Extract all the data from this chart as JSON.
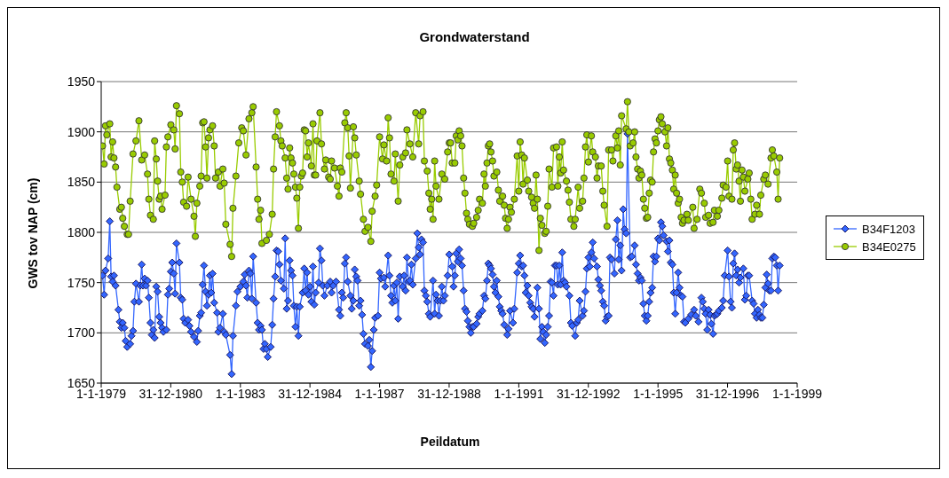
{
  "chart_data": {
    "type": "line",
    "title": "Grondwaterstand",
    "xlabel": "Peildatum",
    "ylabel": "GWS tov NAP (cm)",
    "ylim": [
      1650,
      1950
    ],
    "yticks": [
      1650,
      1700,
      1750,
      1800,
      1850,
      1900,
      1950
    ],
    "xlim": [
      "1979-01-01",
      "1999-01-01"
    ],
    "xticks": [
      {
        "value": "1979-01-01",
        "label": "1-1-1979"
      },
      {
        "value": "1980-12-31",
        "label": "31-12-1980"
      },
      {
        "value": "1983-01-01",
        "label": "1-1-1983"
      },
      {
        "value": "1984-12-31",
        "label": "31-12-1984"
      },
      {
        "value": "1987-01-01",
        "label": "1-1-1987"
      },
      {
        "value": "1988-12-31",
        "label": "31-12-1988"
      },
      {
        "value": "1991-01-01",
        "label": "1-1-1991"
      },
      {
        "value": "1992-12-31",
        "label": "31-12-1992"
      },
      {
        "value": "1995-01-01",
        "label": "1-1-1995"
      },
      {
        "value": "1996-12-31",
        "label": "31-12-1996"
      },
      {
        "value": "1999-01-01",
        "label": "1-1-1999"
      }
    ],
    "grid": "y",
    "legend": "right",
    "series": [
      {
        "name": "B34F1203",
        "color": "#3366ff",
        "marker": "diamond",
        "x": [
          "1979-01-15",
          "1979-02-01",
          "1979-02-15",
          "1979-03-15",
          "1979-04-01",
          "1979-04-15",
          "1979-05-01",
          "1979-05-15",
          "1979-06-01",
          "1979-07-01",
          "1979-07-15",
          "1979-08-01",
          "1979-08-15",
          "1979-09-01",
          "1979-09-15",
          "1979-10-01",
          "1979-11-01",
          "1979-11-15",
          "1979-12-01",
          "1979-12-15",
          "1980-01-01",
          "1980-02-01",
          "1980-02-15",
          "1980-03-01",
          "1980-03-15",
          "1980-04-01",
          "1980-04-15",
          "1980-05-01",
          "1980-05-15",
          "1980-06-01",
          "1980-06-15",
          "1980-07-01",
          "1980-07-15",
          "1980-08-01",
          "1980-08-15",
          "1980-09-01",
          "1980-09-15",
          "1980-10-01",
          "1980-10-15",
          "1980-11-15",
          "1980-12-01",
          "1980-12-15",
          "1981-01-01",
          "1981-01-15",
          "1981-02-01",
          "1981-02-15",
          "1981-03-01",
          "1981-04-01",
          "1981-04-15",
          "1981-05-01",
          "1981-05-15",
          "1981-06-01",
          "1981-07-01",
          "1981-07-15",
          "1981-08-01",
          "1981-09-01",
          "1981-10-01",
          "1981-10-15",
          "1981-11-01",
          "1981-11-15",
          "1981-12-01",
          "1981-12-15",
          "1982-01-01",
          "1982-01-15",
          "1982-02-01",
          "1982-02-15",
          "1982-03-01",
          "1982-03-15",
          "1982-04-01",
          "1982-05-01",
          "1982-05-15",
          "1982-06-01",
          "1982-07-01",
          "1982-07-15",
          "1982-08-01",
          "1982-09-15",
          "1982-10-01",
          "1982-10-15",
          "1982-11-15",
          "1982-12-01",
          "1983-01-01",
          "1983-02-01",
          "1983-02-15",
          "1983-03-01",
          "1983-03-15",
          "1983-04-01",
          "1983-04-15",
          "1983-05-01",
          "1983-05-15",
          "1983-06-15",
          "1983-07-01",
          "1983-07-15",
          "1983-08-01",
          "1983-08-15",
          "1983-09-01",
          "1983-09-15",
          "1983-10-01",
          "1983-10-15",
          "1983-11-15",
          "1983-12-01",
          "1983-12-15",
          "1984-01-01",
          "1984-01-15",
          "1984-02-01",
          "1984-02-15",
          "1984-03-01",
          "1984-04-01",
          "1984-04-15",
          "1984-05-01",
          "1984-05-15",
          "1984-06-01",
          "1984-06-15",
          "1984-07-01",
          "1984-07-15",
          "1984-08-01",
          "1984-08-15",
          "1984-09-01",
          "1984-09-15",
          "1984-10-15",
          "1984-11-01",
          "1984-11-15",
          "1984-12-01",
          "1984-12-15",
          "1985-01-01",
          "1985-01-15",
          "1985-02-01",
          "1985-02-15",
          "1985-03-01",
          "1985-04-01",
          "1985-04-15",
          "1985-05-01",
          "1985-05-15",
          "1985-06-01",
          "1985-07-01",
          "1985-08-01",
          "1985-08-15",
          "1985-09-01",
          "1985-10-01",
          "1985-11-01",
          "1985-11-15",
          "1985-12-01",
          "1985-12-15",
          "1986-01-01",
          "1986-01-15",
          "1986-02-01",
          "1986-03-01",
          "1986-03-15",
          "1986-04-01",
          "1986-04-15",
          "1986-05-01",
          "1986-05-15",
          "1986-06-01",
          "1986-06-15",
          "1986-07-01",
          "1986-07-15",
          "1986-08-01",
          "1986-09-01",
          "1986-09-15",
          "1986-10-01",
          "1986-10-15",
          "1986-11-01",
          "1986-11-15",
          "1986-12-15",
          "1987-01-01",
          "1987-01-15",
          "1987-02-15",
          "1987-03-01",
          "1987-04-01",
          "1987-04-15",
          "1987-05-01",
          "1987-05-15",
          "1987-06-01",
          "1987-06-15",
          "1987-07-01",
          "1987-07-15",
          "1987-08-01",
          "1987-09-01",
          "1987-09-15",
          "1987-10-01",
          "1987-10-15",
          "1987-11-01",
          "1987-11-15",
          "1987-12-01",
          "1987-12-15",
          "1988-01-15",
          "1988-02-01",
          "1988-02-15",
          "1988-03-01",
          "1988-03-15",
          "1988-04-01",
          "1988-04-15",
          "1988-05-01",
          "1988-05-15",
          "1988-06-01",
          "1988-06-15",
          "1988-07-15",
          "1988-08-01",
          "1988-08-15",
          "1988-09-01",
          "1988-09-15",
          "1988-10-01",
          "1988-10-15",
          "1988-11-01",
          "1988-11-15",
          "1988-12-15",
          "1989-01-01",
          "1989-02-01",
          "1989-02-15",
          "1989-03-01",
          "1989-03-15",
          "1989-04-01",
          "1989-04-15",
          "1989-05-01",
          "1989-05-15",
          "1989-06-01",
          "1989-06-15",
          "1989-07-01",
          "1989-07-15",
          "1989-08-01",
          "1989-08-15",
          "1989-09-01",
          "1989-09-15",
          "1989-10-15",
          "1989-11-01",
          "1989-11-15",
          "1989-12-15",
          "1990-01-01",
          "1990-01-15",
          "1990-02-01",
          "1990-02-15",
          "1990-03-01",
          "1990-03-15",
          "1990-04-01",
          "1990-04-15",
          "1990-05-01",
          "1990-05-15",
          "1990-06-01",
          "1990-06-15",
          "1990-07-01",
          "1990-07-15",
          "1990-08-01",
          "1990-09-01",
          "1990-09-15",
          "1990-10-01",
          "1990-11-01",
          "1990-11-15",
          "1990-12-15",
          "1991-01-01",
          "1991-01-15",
          "1991-02-01",
          "1991-02-15",
          "1991-03-01",
          "1991-03-15",
          "1991-04-01",
          "1991-04-15",
          "1991-05-01",
          "1991-05-15",
          "1991-06-01",
          "1991-06-15",
          "1991-07-15",
          "1991-08-01",
          "1991-08-15",
          "1991-09-01",
          "1991-09-15",
          "1991-10-01",
          "1991-10-15",
          "1991-11-01",
          "1991-11-15",
          "1991-12-01",
          "1991-12-15",
          "1992-01-01",
          "1992-01-15",
          "1992-02-01",
          "1992-02-15",
          "1992-03-01",
          "1992-03-15",
          "1992-04-01",
          "1992-04-15",
          "1992-05-01",
          "1992-05-15",
          "1992-06-15",
          "1992-07-01",
          "1992-07-15",
          "1992-08-15",
          "1992-09-01",
          "1992-09-15",
          "1992-10-01",
          "1992-11-01",
          "1992-11-15",
          "1992-12-01",
          "1992-12-15",
          "1993-01-01",
          "1993-01-15",
          "1993-02-01",
          "1993-02-15",
          "1993-03-01",
          "1993-04-01",
          "1993-04-15",
          "1993-05-01",
          "1993-05-15",
          "1993-06-01",
          "1993-06-15",
          "1993-07-01",
          "1993-07-15",
          "1993-08-01",
          "1993-08-15",
          "1993-09-01",
          "1993-10-01",
          "1993-10-15",
          "1993-11-01",
          "1993-11-15",
          "1993-12-01",
          "1993-12-15",
          "1994-01-01",
          "1994-01-15",
          "1994-02-01",
          "1994-02-15",
          "1994-03-15",
          "1994-04-01",
          "1994-05-01",
          "1994-05-15",
          "1994-06-01",
          "1994-06-15",
          "1994-07-01",
          "1994-07-15",
          "1994-08-01",
          "1994-08-15",
          "1994-09-01",
          "1994-09-15",
          "1994-10-01",
          "1994-10-15",
          "1994-11-01",
          "1994-11-15",
          "1994-12-01",
          "1994-12-15",
          "1995-01-01",
          "1995-01-15",
          "1995-02-01",
          "1995-02-15",
          "1995-03-01",
          "1995-04-01",
          "1995-04-15",
          "1995-05-01",
          "1995-05-15",
          "1995-06-01",
          "1995-06-15",
          "1995-07-01",
          "1995-07-15",
          "1995-08-01",
          "1995-08-15",
          "1995-09-01",
          "1995-09-15",
          "1995-10-01",
          "1995-10-15",
          "1995-11-15",
          "1995-12-15",
          "1996-01-15",
          "1996-02-01",
          "1996-03-01",
          "1996-04-01",
          "1996-04-15",
          "1996-05-01",
          "1996-05-15",
          "1996-06-01",
          "1996-06-15",
          "1996-07-01",
          "1996-07-15",
          "1996-08-01",
          "1996-08-15",
          "1996-09-01",
          "1996-09-15",
          "1996-10-01",
          "1996-11-01",
          "1996-11-15",
          "1996-12-01",
          "1997-01-01",
          "1997-01-15",
          "1997-02-01",
          "1997-02-15",
          "1997-03-01",
          "1997-03-15",
          "1997-04-01",
          "1997-04-15",
          "1997-05-01",
          "1997-05-15",
          "1997-06-15",
          "1997-07-01",
          "1997-07-15",
          "1997-08-01",
          "1997-08-15",
          "1997-09-15",
          "1997-10-01",
          "1997-10-15",
          "1997-11-01",
          "1997-11-15",
          "1997-12-01",
          "1997-12-15",
          "1998-01-01",
          "1998-01-15",
          "1998-02-01",
          "1998-02-15",
          "1998-03-01",
          "1998-03-15",
          "1998-04-01",
          "1998-04-15",
          "1998-05-01",
          "1998-05-15",
          "1998-06-01",
          "1998-06-15",
          "1998-07-01"
        ],
        "values": [
          1757,
          1738,
          1762,
          1774,
          1811,
          1756,
          1751,
          1757,
          1747,
          1723,
          1711,
          1705,
          1710,
          1705,
          1692,
          1686,
          1689,
          1697,
          1702,
          1731,
          1749,
          1731,
          1747,
          1768,
          1747,
          1754,
          1747,
          1752,
          1735,
          1710,
          1698,
          1703,
          1695,
          1746,
          1741,
          1716,
          1710,
          1705,
          1701,
          1703,
          1738,
          1744,
          1761,
          1770,
          1759,
          1739,
          1789,
          1770,
          1735,
          1733,
          1714,
          1710,
          1713,
          1707,
          1701,
          1696,
          1691,
          1702,
          1717,
          1720,
          1748,
          1767,
          1741,
          1727,
          1738,
          1757,
          1740,
          1759,
          1730,
          1720,
          1701,
          1705,
          1719,
          1701,
          1698,
          1678,
          1659,
          1697,
          1727,
          1741,
          1746,
          1751,
          1758,
          1747,
          1735,
          1762,
          1759,
          1734,
          1776,
          1730,
          1710,
          1703,
          1707,
          1703,
          1684,
          1689,
          1684,
          1676,
          1686,
          1708,
          1734,
          1756,
          1782,
          1781,
          1768,
          1752,
          1744,
          1794,
          1724,
          1732,
          1772,
          1762,
          1757,
          1727,
          1706,
          1726,
          1697,
          1726,
          1740,
          1764,
          1742,
          1760,
          1738,
          1746,
          1731,
          1766,
          1728,
          1740,
          1750,
          1784,
          1772,
          1747,
          1737,
          1747,
          1751,
          1740,
          1747,
          1751,
          1723,
          1717,
          1740,
          1735,
          1769,
          1775,
          1751,
          1737,
          1724,
          1732,
          1763,
          1756,
          1752,
          1727,
          1732,
          1718,
          1699,
          1689,
          1687,
          1693,
          1666,
          1682,
          1703,
          1715,
          1717,
          1760,
          1754,
          1755,
          1746,
          1777,
          1757,
          1737,
          1730,
          1747,
          1732,
          1750,
          1714,
          1756,
          1746,
          1757,
          1742,
          1775,
          1751,
          1752,
          1768,
          1748,
          1774,
          1799,
          1785,
          1778,
          1793,
          1790,
          1742,
          1737,
          1731,
          1719,
          1716,
          1752,
          1719,
          1738,
          1732,
          1717,
          1732,
          1746,
          1732,
          1737,
          1757,
          1778,
          1766,
          1746,
          1757,
          1779,
          1771,
          1783,
          1774,
          1767,
          1742,
          1724,
          1721,
          1712,
          1706,
          1700,
          1706,
          1706,
          1709,
          1716,
          1719,
          1722,
          1737,
          1734,
          1752,
          1769,
          1767,
          1764,
          1758,
          1746,
          1740,
          1752,
          1736,
          1726,
          1722,
          1719,
          1708,
          1698,
          1704,
          1722,
          1710,
          1724,
          1760,
          1769,
          1777,
          1766,
          1767,
          1757,
          1740,
          1747,
          1737,
          1730,
          1726,
          1724,
          1716,
          1745,
          1724,
          1694,
          1706,
          1701,
          1690,
          1698,
          1706,
          1717,
          1751,
          1750,
          1737,
          1767,
          1767,
          1748,
          1767,
          1748,
          1780,
          1752,
          1750,
          1746,
          1737,
          1710,
          1707,
          1697,
          1710,
          1713,
          1732,
          1717,
          1722,
          1741,
          1764,
          1775,
          1766,
          1780,
          1790,
          1774,
          1766,
          1753,
          1747,
          1742,
          1731,
          1727,
          1712,
          1716,
          1717,
          1775,
          1773,
          1759,
          1793,
          1812,
          1773,
          1787,
          1762,
          1823,
          1803,
          1799,
          1898,
          1775,
          1776,
          1787,
          1768,
          1759,
          1752,
          1755,
          1752,
          1729,
          1717,
          1712,
          1717,
          1731,
          1740,
          1745,
          1776,
          1771,
          1776,
          1794,
          1792,
          1810,
          1806,
          1797,
          1791,
          1781,
          1792,
          1770,
          1768,
          1740,
          1719,
          1740,
          1760,
          1745,
          1737,
          1736,
          1711,
          1710,
          1714,
          1718,
          1723,
          1717,
          1711,
          1735,
          1731,
          1724,
          1719,
          1703,
          1723,
          1718,
          1709,
          1699,
          1717,
          1718,
          1719,
          1722,
          1725,
          1732,
          1757,
          1782,
          1756,
          1731,
          1725,
          1769,
          1779,
          1757,
          1763,
          1750,
          1755,
          1764,
          1733,
          1737,
          1757,
          1757,
          1732,
          1729,
          1719,
          1715,
          1723,
          1718,
          1715,
          1715,
          1728,
          1745,
          1758,
          1749,
          1742,
          1742,
          1774,
          1776,
          1775,
          1767,
          1742,
          1767
        ]
      },
      {
        "name": "B34E0275",
        "color": "#99cc00",
        "marker": "circle",
        "x": [
          "1979-01-15",
          "1979-02-01",
          "1979-02-15",
          "1979-03-01",
          "1979-04-01",
          "1979-04-15",
          "1979-05-01",
          "1979-05-15",
          "1979-06-01",
          "1979-06-15",
          "1979-07-15",
          "1979-08-01",
          "1979-08-15",
          "1979-09-01",
          "1979-10-01",
          "1979-10-15",
          "1979-11-01",
          "1979-12-01",
          "1980-01-01",
          "1980-02-01",
          "1980-03-01",
          "1980-04-01",
          "1980-05-01",
          "1980-05-15",
          "1980-06-01",
          "1980-07-01",
          "1980-07-15",
          "1980-08-01",
          "1980-08-15",
          "1980-09-01",
          "1980-09-15",
          "1980-10-01",
          "1980-11-01",
          "1980-11-15",
          "1980-12-01",
          "1981-01-01",
          "1981-02-01",
          "1981-02-15",
          "1981-03-01",
          "1981-04-01",
          "1981-04-15",
          "1981-05-01",
          "1981-05-15",
          "1981-06-15",
          "1981-07-01",
          "1981-08-01",
          "1981-09-01",
          "1981-09-15",
          "1981-10-01",
          "1981-11-01",
          "1981-11-15",
          "1981-12-01",
          "1981-12-15",
          "1982-01-01",
          "1982-01-15",
          "1982-02-01",
          "1982-02-15",
          "1982-03-15",
          "1982-04-01",
          "1982-04-15",
          "1982-05-15",
          "1982-06-01",
          "1982-07-01",
          "1982-07-15",
          "1982-08-01",
          "1982-09-15",
          "1982-10-01",
          "1982-10-15",
          "1982-11-15",
          "1982-12-15",
          "1983-01-15",
          "1983-02-01",
          "1983-03-01",
          "1983-04-01",
          "1983-05-01",
          "1983-05-15",
          "1983-06-15",
          "1983-07-01",
          "1983-07-15",
          "1983-08-01",
          "1983-08-15",
          "1983-10-01",
          "1983-11-01",
          "1983-12-01",
          "1983-12-15",
          "1984-01-01",
          "1984-01-15",
          "1984-02-15",
          "1984-03-01",
          "1984-03-15",
          "1984-04-15",
          "1984-05-01",
          "1984-05-15",
          "1984-06-01",
          "1984-06-15",
          "1984-07-01",
          "1984-07-15",
          "1984-08-01",
          "1984-08-15",
          "1984-09-01",
          "1984-09-15",
          "1984-10-01",
          "1984-10-15",
          "1984-11-01",
          "1984-11-15",
          "1984-12-01",
          "1984-12-15",
          "1985-01-15",
          "1985-02-01",
          "1985-02-15",
          "1985-03-01",
          "1985-03-15",
          "1985-04-15",
          "1985-05-01",
          "1985-06-01",
          "1985-06-15",
          "1985-07-15",
          "1985-08-01",
          "1985-08-15",
          "1985-09-15",
          "1985-10-15",
          "1985-11-01",
          "1985-11-15",
          "1985-12-01",
          "1986-01-01",
          "1986-01-15",
          "1986-02-01",
          "1986-02-15",
          "1986-03-01",
          "1986-04-01",
          "1986-04-15",
          "1986-05-01",
          "1986-06-01",
          "1986-06-15",
          "1986-07-15",
          "1986-08-01",
          "1986-09-01",
          "1986-10-01",
          "1986-10-15",
          "1986-11-15",
          "1986-12-01",
          "1987-01-01",
          "1987-02-01",
          "1987-02-15",
          "1987-03-15",
          "1987-04-01",
          "1987-04-15",
          "1987-05-01",
          "1987-06-01",
          "1987-06-15",
          "1987-07-15",
          "1987-08-01",
          "1987-09-01",
          "1987-10-01",
          "1987-10-15",
          "1987-11-15",
          "1987-12-15",
          "1988-01-15",
          "1988-02-15",
          "1988-03-01",
          "1988-04-01",
          "1988-04-15",
          "1988-05-15",
          "1988-06-01",
          "1988-06-15",
          "1988-07-01",
          "1988-07-15",
          "1988-08-01",
          "1988-08-15",
          "1988-09-15",
          "1988-10-15",
          "1988-11-15",
          "1988-12-15",
          "1989-01-01",
          "1989-01-15",
          "1989-02-01",
          "1989-03-01",
          "1989-03-15",
          "1989-04-01",
          "1989-04-15",
          "1989-05-01",
          "1989-05-15",
          "1989-06-01",
          "1989-06-15",
          "1989-07-01",
          "1989-07-15",
          "1989-08-01",
          "1989-09-01",
          "1989-09-15",
          "1989-10-15",
          "1989-11-01",
          "1989-11-15",
          "1989-12-15",
          "1990-01-01",
          "1990-01-15",
          "1990-02-01",
          "1990-02-15",
          "1990-03-01",
          "1990-03-15",
          "1990-04-01",
          "1990-04-15",
          "1990-05-15",
          "1990-06-01",
          "1990-06-15",
          "1990-07-15",
          "1990-08-01",
          "1990-08-15",
          "1990-09-01",
          "1990-09-15",
          "1990-10-01",
          "1990-10-15",
          "1990-11-15",
          "1990-12-15",
          "1991-01-01",
          "1991-01-15",
          "1991-02-01",
          "1991-02-15",
          "1991-03-01",
          "1991-04-01",
          "1991-04-15",
          "1991-05-15",
          "1991-06-01",
          "1991-06-15",
          "1991-07-01",
          "1991-07-15",
          "1991-08-01",
          "1991-08-15",
          "1991-09-01",
          "1991-10-01",
          "1991-10-15",
          "1991-11-01",
          "1991-11-15",
          "1991-12-15",
          "1992-01-01",
          "1992-02-01",
          "1992-02-15",
          "1992-03-01",
          "1992-03-15",
          "1992-04-01",
          "1992-04-15",
          "1992-05-15",
          "1992-06-01",
          "1992-06-15",
          "1992-07-01",
          "1992-08-01",
          "1992-08-15",
          "1992-09-15",
          "1992-10-01",
          "1992-11-01",
          "1992-11-15",
          "1992-12-01",
          "1992-12-15",
          "1993-01-01",
          "1993-02-01",
          "1993-02-15",
          "1993-03-15",
          "1993-04-01",
          "1993-04-15",
          "1993-05-15",
          "1993-06-01",
          "1993-06-15",
          "1993-07-15",
          "1993-08-01",
          "1993-09-01",
          "1993-09-15",
          "1993-10-15",
          "1993-11-01",
          "1993-11-15",
          "1993-12-01",
          "1993-12-15",
          "1994-02-01",
          "1994-02-15",
          "1994-03-01",
          "1994-03-15",
          "1994-04-15",
          "1994-05-01",
          "1994-05-15",
          "1994-06-01",
          "1994-06-15",
          "1994-07-01",
          "1994-07-15",
          "1994-08-01",
          "1994-08-15",
          "1994-09-01",
          "1994-09-15",
          "1994-10-01",
          "1994-10-15",
          "1994-11-01",
          "1994-11-15",
          "1994-12-01",
          "1994-12-15",
          "1995-01-01",
          "1995-01-15",
          "1995-02-01",
          "1995-02-15",
          "1995-03-15",
          "1995-04-01",
          "1995-04-15",
          "1995-05-01",
          "1995-05-15",
          "1995-06-01",
          "1995-06-15",
          "1995-07-01",
          "1995-07-15",
          "1995-08-01",
          "1995-08-15",
          "1995-09-01",
          "1995-09-15",
          "1995-10-01",
          "1995-11-01",
          "1995-11-15",
          "1996-01-01",
          "1996-01-15",
          "1996-02-15",
          "1996-03-15",
          "1996-04-01",
          "1996-05-01",
          "1996-05-15",
          "1996-06-15",
          "1996-07-01",
          "1996-08-01",
          "1996-08-15",
          "1996-09-15",
          "1996-10-01",
          "1996-11-01",
          "1996-11-15",
          "1996-12-15",
          "1997-01-01",
          "1997-01-15",
          "1997-02-15",
          "1997-03-01",
          "1997-03-15",
          "1997-04-01",
          "1997-04-15",
          "1997-05-01",
          "1997-05-15",
          "1997-06-01",
          "1997-06-15",
          "1997-07-01",
          "1997-08-01",
          "1997-08-15",
          "1997-09-01",
          "1997-09-15",
          "1997-10-15",
          "1997-11-01",
          "1997-12-01",
          "1997-12-15",
          "1998-01-15",
          "1998-02-01",
          "1998-03-01",
          "1998-04-01",
          "1998-04-15",
          "1998-05-01",
          "1998-06-01",
          "1998-06-15",
          "1998-07-01"
        ],
        "values": [
          1886,
          1868,
          1906,
          1897,
          1908,
          1875,
          1890,
          1874,
          1865,
          1845,
          1823,
          1825,
          1814,
          1806,
          1798,
          1798,
          1831,
          1878,
          1891,
          1911,
          1872,
          1877,
          1858,
          1833,
          1817,
          1813,
          1891,
          1873,
          1851,
          1833,
          1836,
          1823,
          1837,
          1885,
          1895,
          1907,
          1902,
          1883,
          1926,
          1918,
          1860,
          1850,
          1830,
          1826,
          1855,
          1833,
          1816,
          1796,
          1829,
          1846,
          1856,
          1909,
          1910,
          1885,
          1854,
          1894,
          1902,
          1906,
          1886,
          1854,
          1860,
          1846,
          1863,
          1849,
          1808,
          1788,
          1776,
          1824,
          1856,
          1889,
          1904,
          1901,
          1877,
          1913,
          1919,
          1925,
          1865,
          1833,
          1813,
          1822,
          1789,
          1792,
          1798,
          1818,
          1863,
          1895,
          1920,
          1906,
          1891,
          1886,
          1874,
          1854,
          1843,
          1884,
          1874,
          1869,
          1858,
          1845,
          1834,
          1804,
          1845,
          1856,
          1859,
          1902,
          1901,
          1875,
          1889,
          1866,
          1908,
          1857,
          1857,
          1891,
          1919,
          1888,
          1863,
          1872,
          1855,
          1853,
          1871,
          1864,
          1846,
          1836,
          1864,
          1860,
          1909,
          1919,
          1904,
          1876,
          1844,
          1905,
          1894,
          1877,
          1851,
          1838,
          1813,
          1801,
          1805,
          1791,
          1821,
          1836,
          1847,
          1895,
          1873,
          1887,
          1871,
          1914,
          1894,
          1858,
          1851,
          1878,
          1831,
          1867,
          1875,
          1879,
          1902,
          1888,
          1875,
          1919,
          1888,
          1916,
          1920,
          1871,
          1861,
          1839,
          1823,
          1833,
          1813,
          1871,
          1846,
          1833,
          1858,
          1853,
          1880,
          1889,
          1889,
          1869,
          1869,
          1896,
          1892,
          1901,
          1896,
          1886,
          1854,
          1839,
          1819,
          1813,
          1808,
          1806,
          1809,
          1815,
          1822,
          1833,
          1829,
          1858,
          1846,
          1869,
          1886,
          1888,
          1880,
          1871,
          1856,
          1860,
          1842,
          1831,
          1836,
          1827,
          1814,
          1804,
          1813,
          1825,
          1820,
          1833,
          1876,
          1841,
          1890,
          1877,
          1848,
          1874,
          1852,
          1841,
          1835,
          1829,
          1824,
          1857,
          1833,
          1782,
          1814,
          1807,
          1799,
          1801,
          1826,
          1863,
          1845,
          1884,
          1885,
          1846,
          1875,
          1859,
          1890,
          1862,
          1851,
          1842,
          1830,
          1813,
          1806,
          1813,
          1845,
          1824,
          1831,
          1854,
          1885,
          1897,
          1870,
          1896,
          1880,
          1875,
          1854,
          1866,
          1866,
          1841,
          1827,
          1806,
          1882,
          1882,
          1871,
          1896,
          1884,
          1901,
          1867,
          1916,
          1903,
          1930,
          1900,
          1886,
          1889,
          1900,
          1875,
          1863,
          1854,
          1861,
          1857,
          1833,
          1824,
          1814,
          1815,
          1839,
          1852,
          1850,
          1880,
          1893,
          1889,
          1901,
          1912,
          1915,
          1908,
          1900,
          1886,
          1904,
          1873,
          1869,
          1862,
          1843,
          1857,
          1839,
          1829,
          1833,
          1815,
          1809,
          1812,
          1818,
          1812,
          1825,
          1804,
          1813,
          1843,
          1839,
          1829,
          1815,
          1817,
          1809,
          1810,
          1822,
          1816,
          1822,
          1834,
          1847,
          1845,
          1871,
          1836,
          1833,
          1882,
          1889,
          1863,
          1867,
          1851,
          1831,
          1862,
          1855,
          1841,
          1853,
          1859,
          1833,
          1813,
          1818,
          1827,
          1818,
          1837,
          1853,
          1857,
          1848,
          1874,
          1882,
          1876,
          1860,
          1833,
          1874
        ]
      }
    ]
  }
}
